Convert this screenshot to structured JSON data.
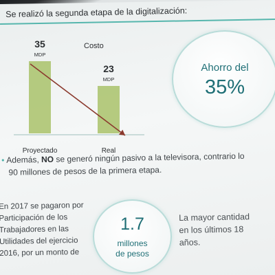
{
  "heading": "Se realizó la segunda etapa de la digitalización:",
  "chart_data": {
    "type": "bar",
    "title": "Costo",
    "categories": [
      "Proyectado",
      "Real"
    ],
    "values": [
      35,
      23
    ],
    "value_labels": [
      "35",
      "23"
    ],
    "unit": "MDP",
    "ylim": [
      0,
      40
    ],
    "grid": false,
    "colors": {
      "bar": "#a9c26a",
      "trend_line": "#8b3a2e"
    }
  },
  "ahorro": {
    "line1": "Ahorro del",
    "line2": "35%"
  },
  "bullet": {
    "prefix": "Además, ",
    "bold": "NO",
    "line1_rest": " se generó ningún pasivo a la televisora, contrario lo",
    "line2": "90 millones de pesos de la primera etapa."
  },
  "paragraph_lines": [
    "En 2017 se pagaron por",
    "Participación de los",
    "Trabajadores en las",
    "Utilidades del ejercicio",
    "2016, por un monto de"
  ],
  "highlight": {
    "value": "1.7",
    "unit_line1": "millones",
    "unit_line2": "de pesos"
  },
  "right_lines": [
    "La mayor cantidad",
    "en los últimos 18",
    "años."
  ],
  "colors": {
    "accent": "#56b6ad",
    "circle_text": "#1f6f76"
  }
}
